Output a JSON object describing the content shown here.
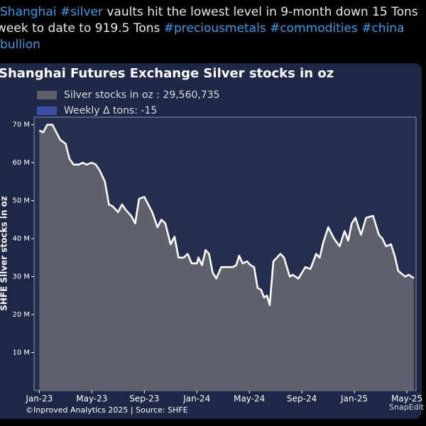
{
  "tweet": [
    [
      {
        "text": "Shanghai",
        "hashtag": true
      },
      {
        "text": "#silver",
        "hashtag": true
      },
      {
        "text": "vaults hit the lowest level in 9-month down 15 Tons",
        "hashtag": false
      }
    ],
    [
      {
        "text": "week to date to 919.5 Tons",
        "hashtag": false
      },
      {
        "text": "#preciousmetals",
        "hashtag": true
      },
      {
        "text": "#commodities",
        "hashtag": true
      },
      {
        "text": "#china",
        "hashtag": true
      }
    ],
    [
      {
        "text": "bullion",
        "hashtag": true
      }
    ]
  ],
  "chart_data": {
    "type": "area",
    "title": "Shanghai Futures Exchange Silver stocks in oz",
    "ylabel": "SHFE Silver stocks in oz",
    "footer": "©Inproved Analytics 2025 | Source: SHFE",
    "watermark": "SnapEdit",
    "series": [
      {
        "name": "Silver stocks in oz : 29,560,735",
        "color": "#5e606b",
        "line_color": "#ffffff",
        "x": [
          0,
          0.3,
          0.6,
          1.0,
          1.3,
          1.6,
          2.0,
          2.3,
          2.6,
          3.0,
          3.3,
          3.6,
          4.0,
          4.3,
          4.6,
          5.0,
          5.3,
          5.6,
          6.0,
          6.3,
          6.6,
          7.0,
          7.3,
          7.6,
          8.0,
          8.3,
          8.6,
          9.0,
          9.3,
          9.6,
          10.0,
          10.3,
          10.6,
          11.0,
          11.3,
          11.6,
          12.0,
          12.12,
          12.39,
          12.66,
          12.93,
          13.21,
          13.48,
          13.86,
          14.29,
          14.73,
          15.0,
          15.22,
          15.49,
          15.82,
          16.09,
          16.36,
          16.63,
          16.9,
          17.12,
          17.34,
          17.55,
          17.83,
          18.37,
          18.64,
          19.08,
          19.29,
          19.73,
          20.27,
          20.65,
          21.09,
          21.36,
          21.63,
          22.01,
          22.45,
          22.88,
          23.26,
          23.53,
          23.8,
          24.08,
          24.51,
          24.89,
          25.43,
          25.87,
          26.14,
          26.41,
          26.79,
          27.07,
          27.34,
          27.88,
          28.15,
          28.53
        ],
        "values": [
          68500000,
          68000000,
          70000000,
          70000000,
          68000000,
          66000000,
          65000000,
          61000000,
          59500000,
          59500000,
          60000000,
          59500000,
          60000000,
          59500000,
          58000000,
          55000000,
          49000000,
          48500000,
          47000000,
          49000000,
          47500000,
          46000000,
          44000000,
          50500000,
          51000000,
          49000000,
          47000000,
          43000000,
          45000000,
          44000000,
          38500000,
          40500000,
          35000000,
          35000000,
          36000000,
          33500000,
          33500000,
          35000000,
          33000000,
          37000000,
          36000000,
          31000000,
          29500000,
          32500000,
          32500000,
          32500000,
          33000000,
          35500000,
          33500000,
          34000000,
          33000000,
          32500000,
          27000000,
          26500000,
          24500000,
          25000000,
          22500000,
          34000000,
          36000000,
          35000000,
          30000000,
          30500000,
          29500000,
          32500000,
          32000000,
          36000000,
          35000000,
          39000000,
          43000000,
          40000000,
          38000000,
          42000000,
          39500000,
          44000000,
          45500000,
          41000000,
          45500000,
          46000000,
          41000000,
          40000000,
          38000000,
          38500000,
          35500000,
          31500000,
          30000000,
          30500000,
          29560735
        ]
      }
    ],
    "extra_legend": [
      {
        "name": "Weekly Δ tons: -15",
        "color": "#3d4fa6"
      }
    ],
    "xlim": [
      -0.4,
      28.7
    ],
    "xticks": [
      {
        "value": 0,
        "label": "Jan-23"
      },
      {
        "value": 4,
        "label": "May-23"
      },
      {
        "value": 8,
        "label": "Sep-23"
      },
      {
        "value": 12,
        "label": "Jan-24"
      },
      {
        "value": 16,
        "label": "May-24"
      },
      {
        "value": 20,
        "label": "Sep-24"
      },
      {
        "value": 24,
        "label": "Jan-25"
      },
      {
        "value": 28,
        "label": "May-25"
      }
    ],
    "ylim": [
      0,
      72000000
    ],
    "yticks": [
      {
        "value": 10000000,
        "label": "10 M"
      },
      {
        "value": 20000000,
        "label": "20 M"
      },
      {
        "value": 30000000,
        "label": "30 M"
      },
      {
        "value": 40000000,
        "label": "40 M"
      },
      {
        "value": 50000000,
        "label": "50 M"
      },
      {
        "value": 60000000,
        "label": "60 M"
      },
      {
        "value": 70000000,
        "label": "70 M"
      }
    ]
  }
}
